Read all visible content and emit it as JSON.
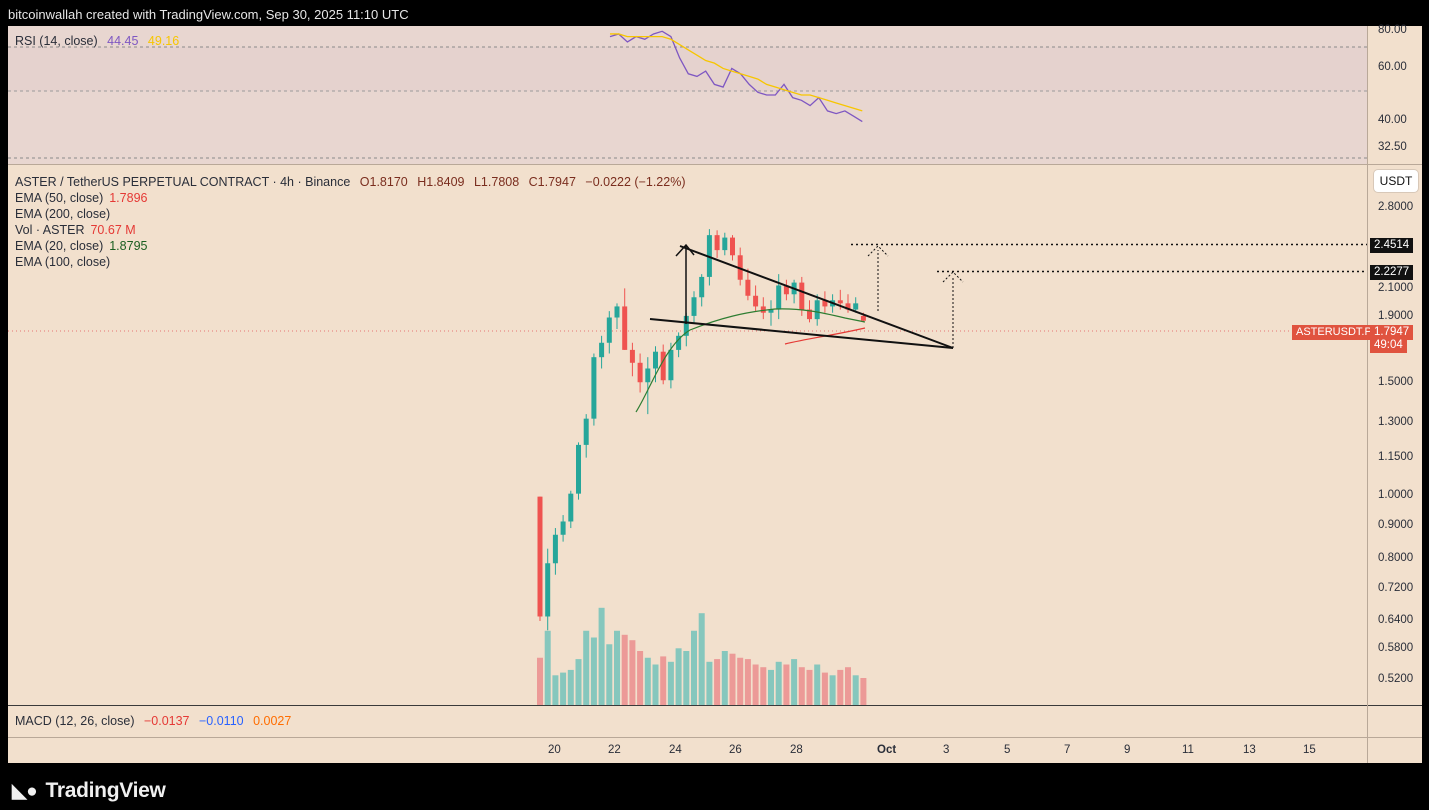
{
  "header": {
    "caption": "bitcoinwallah created with TradingView.com, Sep 30, 2025 11:10 UTC"
  },
  "rsi": {
    "label": "RSI (14, close)",
    "value": "44.45",
    "ma_value": "49.16",
    "ticks": [
      "80.00",
      "60.00",
      "40.00",
      "32.50"
    ],
    "colors": {
      "rsi": "#7e57c2",
      "ma": "#f7c600"
    }
  },
  "main": {
    "title": "ASTER / TetherUS PERPETUAL CONTRACT · 4h · Binance",
    "ohlc": {
      "o": "O1.8170",
      "h": "H1.8409",
      "l": "L1.7808",
      "c": "C1.7947",
      "chg": "−0.0222 (−1.22%)"
    },
    "indicators": [
      {
        "label": "EMA (50, close)",
        "value": "1.7896",
        "color": "#e53935"
      },
      {
        "label": "EMA (200, close)",
        "value": "",
        "color": "#2a2e39"
      },
      {
        "label": "Vol · ASTER",
        "value": "70.67 M",
        "color": "#e53935"
      },
      {
        "label": "EMA (20, close)",
        "value": "1.8795",
        "color": "#1b5e20"
      },
      {
        "label": "EMA (100, close)",
        "value": "",
        "color": "#2a2e39"
      }
    ],
    "currency": "USDT",
    "price_ticks": [
      "2.8000",
      "2.1000",
      "1.9000",
      "1.5000",
      "1.3000",
      "1.1500",
      "1.0000",
      "0.9000",
      "0.8000",
      "0.7200",
      "0.6400",
      "0.5800",
      "0.5200"
    ],
    "targets": [
      "2.4514",
      "2.2277"
    ],
    "symbol_tag": "ASTERUSDT.P",
    "last_price": "1.7947",
    "countdown": "49:04"
  },
  "macd": {
    "label": "MACD (12, 26, close)",
    "v1": "−0.0137",
    "v2": "−0.0110",
    "v3": "0.0027"
  },
  "time_axis": [
    "20",
    "22",
    "24",
    "26",
    "28",
    "Oct",
    "3",
    "5",
    "7",
    "9",
    "11",
    "13",
    "15"
  ],
  "footer": {
    "brand": "TradingView"
  },
  "chart_data": [
    {
      "type": "candlestick",
      "title": "ASTER / TetherUS PERPETUAL CONTRACT · 4h · Binance",
      "yscale": "log",
      "ylim": [
        0.48,
        3.0
      ],
      "colors": {
        "up": "#26a69a",
        "down": "#ef5350"
      },
      "candles": [
        [
          0.98,
          0.98,
          0.64,
          0.65
        ],
        [
          0.65,
          0.82,
          0.62,
          0.78
        ],
        [
          0.78,
          0.88,
          0.75,
          0.86
        ],
        [
          0.86,
          0.92,
          0.84,
          0.9
        ],
        [
          0.9,
          1.0,
          0.88,
          0.99
        ],
        [
          0.99,
          1.18,
          0.97,
          1.17
        ],
        [
          1.17,
          1.3,
          1.12,
          1.28
        ],
        [
          1.28,
          1.6,
          1.25,
          1.58
        ],
        [
          1.58,
          1.7,
          1.52,
          1.66
        ],
        [
          1.66,
          1.85,
          1.6,
          1.81
        ],
        [
          1.81,
          1.9,
          1.74,
          1.88
        ],
        [
          1.88,
          2.0,
          1.62,
          1.62
        ],
        [
          1.62,
          1.66,
          1.48,
          1.55
        ],
        [
          1.55,
          1.6,
          1.4,
          1.45
        ],
        [
          1.45,
          1.58,
          1.3,
          1.52
        ],
        [
          1.52,
          1.64,
          1.45,
          1.61
        ],
        [
          1.61,
          1.65,
          1.44,
          1.46
        ],
        [
          1.46,
          1.66,
          1.42,
          1.62
        ],
        [
          1.62,
          1.72,
          1.58,
          1.7
        ],
        [
          1.7,
          1.84,
          1.64,
          1.82
        ],
        [
          1.82,
          1.98,
          1.78,
          1.94
        ],
        [
          1.94,
          2.1,
          1.88,
          2.08
        ],
        [
          2.08,
          2.45,
          2.02,
          2.4
        ],
        [
          2.4,
          2.44,
          2.22,
          2.28
        ],
        [
          2.28,
          2.42,
          2.24,
          2.38
        ],
        [
          2.38,
          2.4,
          2.2,
          2.24
        ],
        [
          2.24,
          2.3,
          2.02,
          2.06
        ],
        [
          2.06,
          2.14,
          1.92,
          1.95
        ],
        [
          1.95,
          2.02,
          1.85,
          1.88
        ],
        [
          1.88,
          1.94,
          1.8,
          1.84
        ],
        [
          1.84,
          1.92,
          1.76,
          1.86
        ],
        [
          1.86,
          2.1,
          1.8,
          2.02
        ],
        [
          2.02,
          2.06,
          1.92,
          1.96
        ],
        [
          1.96,
          2.06,
          1.9,
          2.04
        ],
        [
          2.04,
          2.08,
          1.82,
          1.86
        ],
        [
          1.86,
          1.92,
          1.78,
          1.8
        ],
        [
          1.8,
          1.96,
          1.76,
          1.92
        ],
        [
          1.92,
          1.98,
          1.84,
          1.88
        ],
        [
          1.88,
          1.96,
          1.84,
          1.92
        ],
        [
          1.92,
          1.99,
          1.86,
          1.9
        ],
        [
          1.9,
          1.96,
          1.84,
          1.86
        ],
        [
          1.86,
          1.94,
          1.84,
          1.9
        ],
        [
          1.82,
          1.84,
          1.78,
          1.79
        ]
      ],
      "volume_heights": [
        0.35,
        0.55,
        0.22,
        0.24,
        0.26,
        0.34,
        0.55,
        0.5,
        0.72,
        0.45,
        0.55,
        0.52,
        0.48,
        0.4,
        0.35,
        0.3,
        0.36,
        0.32,
        0.42,
        0.4,
        0.55,
        0.68,
        0.32,
        0.34,
        0.4,
        0.38,
        0.35,
        0.34,
        0.3,
        0.28,
        0.26,
        0.32,
        0.3,
        0.34,
        0.28,
        0.26,
        0.3,
        0.24,
        0.22,
        0.26,
        0.28,
        0.22,
        0.2
      ],
      "annotations": [
        "falling wedge",
        "targets 2.4514 / 2.2277"
      ]
    },
    {
      "type": "line",
      "title": "RSI (14, close)",
      "ylim": [
        30,
        82
      ],
      "series": [
        {
          "name": "RSI",
          "values": [
            78,
            79,
            76,
            78,
            77,
            79,
            80,
            78,
            70,
            64,
            63,
            65,
            60,
            59,
            66,
            64,
            60,
            57,
            56,
            56,
            60,
            55,
            54,
            52,
            55,
            50,
            49,
            50,
            48,
            46
          ]
        },
        {
          "name": "MA",
          "values": [
            79,
            79,
            78,
            78,
            78,
            78,
            78,
            77,
            75,
            73,
            71,
            69,
            68,
            66,
            65,
            64,
            63,
            62,
            60,
            59,
            58,
            57,
            56,
            56,
            55,
            54,
            53,
            52,
            51,
            50
          ]
        }
      ]
    }
  ]
}
